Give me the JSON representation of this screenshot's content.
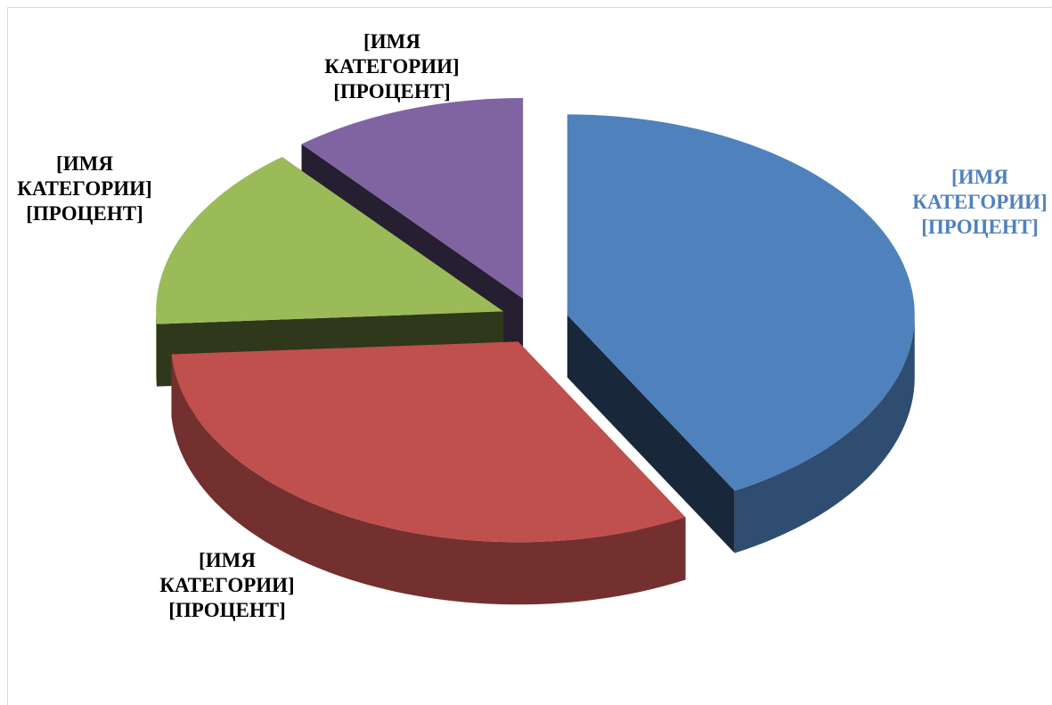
{
  "chart_data": {
    "type": "pie3d",
    "categories": [
      "[ИМЯ КАТЕГОРИИ]",
      "[ИМЯ КАТЕГОРИИ]",
      "[ИМЯ КАТЕГОРИИ]",
      "[ИМЯ КАТЕГОРИИ]"
    ],
    "values": [
      42,
      32,
      15,
      11
    ],
    "value_labels": [
      "[ПРОЦЕНТ]",
      "[ПРОЦЕНТ]",
      "[ПРОЦЕНТ]",
      "[ПРОЦЕНТ]"
    ],
    "colors": [
      "#4f81bd",
      "#c0504d",
      "#9bbb59",
      "#8064a2"
    ],
    "label_colors": [
      "#4f81bd",
      "#000000",
      "#000000",
      "#000000"
    ]
  }
}
